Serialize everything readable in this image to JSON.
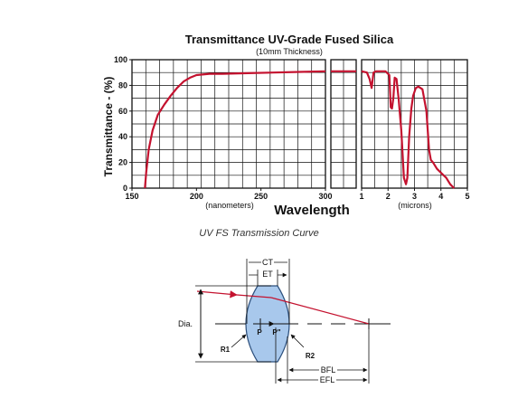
{
  "chart_data": {
    "type": "line",
    "title": "Transmittance UV-Grade Fused Silica",
    "subtitle": "(10mm Thickness)",
    "ylabel": "Transmittance - (%)",
    "xlabel": "Wavelength",
    "ylim": [
      0,
      100
    ],
    "yticks": [
      "0",
      "20",
      "40",
      "60",
      "80",
      "100"
    ],
    "grid": true,
    "panels": [
      {
        "name": "nm-panel",
        "unit_label": "(nanometers)",
        "xlim": [
          150,
          300
        ],
        "xticks": [
          "150",
          "200",
          "250",
          "300"
        ],
        "series": [
          {
            "color": "#c4122f",
            "x": [
              160,
              161,
              163,
              166,
              170,
              175,
              180,
              185,
              190,
              195,
              200,
              210,
              220,
              240,
              260,
              280,
              300
            ],
            "y": [
              0,
              12,
              30,
              45,
              57,
              65,
              72,
              78,
              83,
              86,
              88,
              89,
              89,
              89.5,
              90,
              90.5,
              91
            ]
          }
        ]
      },
      {
        "name": "gap-panel",
        "series": [
          {
            "color": "#c4122f",
            "x": [
              0,
              1
            ],
            "y": [
              91,
              91
            ]
          }
        ]
      },
      {
        "name": "micron-panel",
        "unit_label": "(microns)",
        "xlim": [
          1,
          5
        ],
        "xticks": [
          "1",
          "2",
          "3",
          "4",
          "5"
        ],
        "series": [
          {
            "color": "#c4122f",
            "x": [
              1.0,
              1.2,
              1.3,
              1.38,
              1.45,
              1.55,
              1.9,
              2.05,
              2.1,
              2.15,
              2.2,
              2.25,
              2.32,
              2.4,
              2.5,
              2.6,
              2.68,
              2.73,
              2.8,
              2.88,
              2.95,
              3.05,
              3.15,
              3.3,
              3.45,
              3.55,
              3.62,
              3.7,
              3.85,
              4.0,
              4.2,
              4.35,
              4.45,
              4.5
            ],
            "y": [
              91,
              90,
              85,
              78,
              90,
              91,
              91,
              88,
              63,
              62,
              70,
              86,
              85,
              70,
              45,
              8,
              3,
              8,
              40,
              62,
              72,
              78,
              79,
              77,
              60,
              30,
              22,
              20,
              15,
              12,
              8,
              3,
              1,
              0
            ]
          }
        ]
      }
    ]
  },
  "caption": "UV FS Transmission Curve",
  "lens_diagram": {
    "labels": {
      "ct": "CT",
      "et": "ET",
      "dia": "Dia.",
      "p": "P",
      "p_prime": "P\"",
      "r1": "R1",
      "r2": "R2",
      "bfl": "BFL",
      "efl": "EFL"
    },
    "colors": {
      "lens_fill": "#a8c8ec",
      "lens_stroke": "#2c4f7c",
      "ray": "#c4122f"
    }
  }
}
